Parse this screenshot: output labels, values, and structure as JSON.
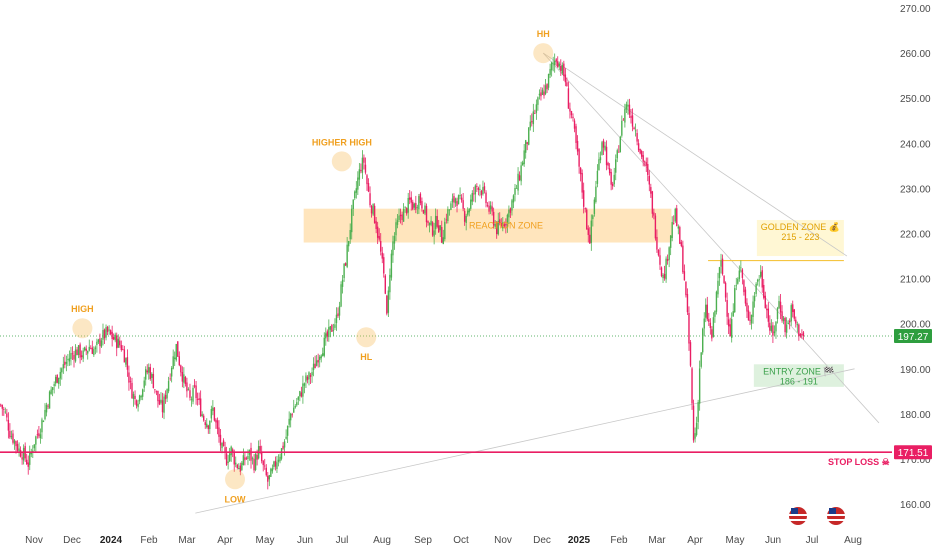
{
  "chart_data": {
    "type": "candlestick",
    "y_axis": {
      "ticks": [
        "270.00",
        "260.00",
        "250.00",
        "240.00",
        "230.00",
        "220.00",
        "210.00",
        "200.00",
        "190.00",
        "180.00",
        "170.00",
        "160.00"
      ],
      "range": [
        157,
        272
      ],
      "position": "right"
    },
    "x_axis": {
      "ticks": [
        {
          "label": "Nov",
          "bold": false
        },
        {
          "label": "Dec",
          "bold": false
        },
        {
          "label": "2024",
          "bold": true
        },
        {
          "label": "Feb",
          "bold": false
        },
        {
          "label": "Mar",
          "bold": false
        },
        {
          "label": "Apr",
          "bold": false
        },
        {
          "label": "May",
          "bold": false
        },
        {
          "label": "Jun",
          "bold": false
        },
        {
          "label": "Jul",
          "bold": false
        },
        {
          "label": "Aug",
          "bold": false
        },
        {
          "label": "Sep",
          "bold": false
        },
        {
          "label": "Oct",
          "bold": false
        },
        {
          "label": "Nov",
          "bold": false
        },
        {
          "label": "Dec",
          "bold": false
        },
        {
          "label": "2025",
          "bold": true
        },
        {
          "label": "Feb",
          "bold": false
        },
        {
          "label": "Mar",
          "bold": false
        },
        {
          "label": "Apr",
          "bold": false
        },
        {
          "label": "May",
          "bold": false
        },
        {
          "label": "Jun",
          "bold": false
        },
        {
          "label": "Jul",
          "bold": false
        },
        {
          "label": "Aug",
          "bold": false
        }
      ]
    },
    "close_path": [
      [
        0,
        182
      ],
      [
        3,
        180
      ],
      [
        6,
        176
      ],
      [
        9,
        174
      ],
      [
        12,
        172
      ],
      [
        15,
        171
      ],
      [
        18,
        169
      ],
      [
        22,
        174
      ],
      [
        26,
        177
      ],
      [
        30,
        182
      ],
      [
        34,
        186
      ],
      [
        38,
        189
      ],
      [
        42,
        191
      ],
      [
        46,
        193
      ],
      [
        50,
        194
      ],
      [
        54,
        193
      ],
      [
        58,
        195
      ],
      [
        62,
        194
      ],
      [
        66,
        197
      ],
      [
        70,
        198
      ],
      [
        73,
        197
      ],
      [
        76,
        196
      ],
      [
        79,
        195
      ],
      [
        82,
        192
      ],
      [
        85,
        186
      ],
      [
        88,
        183
      ],
      [
        91,
        184
      ],
      [
        94,
        188
      ],
      [
        97,
        190
      ],
      [
        100,
        187
      ],
      [
        103,
        183
      ],
      [
        106,
        181
      ],
      [
        109,
        186
      ],
      [
        112,
        191
      ],
      [
        115,
        195
      ],
      [
        118,
        190
      ],
      [
        121,
        186
      ],
      [
        124,
        183
      ],
      [
        127,
        185
      ],
      [
        130,
        182
      ],
      [
        133,
        179
      ],
      [
        136,
        178
      ],
      [
        139,
        181
      ],
      [
        142,
        176
      ],
      [
        145,
        172
      ],
      [
        148,
        170
      ],
      [
        151,
        172
      ],
      [
        154,
        169
      ],
      [
        157,
        168
      ],
      [
        160,
        170
      ],
      [
        163,
        171
      ],
      [
        166,
        169
      ],
      [
        169,
        172
      ],
      [
        172,
        168
      ],
      [
        175,
        165
      ],
      [
        178,
        167
      ],
      [
        181,
        170
      ],
      [
        184,
        172
      ],
      [
        187,
        175
      ],
      [
        190,
        180
      ],
      [
        193,
        182
      ],
      [
        196,
        184
      ],
      [
        199,
        187
      ],
      [
        202,
        188
      ],
      [
        205,
        190
      ],
      [
        208,
        193
      ],
      [
        211,
        195
      ],
      [
        214,
        197
      ],
      [
        217,
        199
      ],
      [
        220,
        201
      ],
      [
        222,
        205
      ],
      [
        224,
        210
      ],
      [
        226,
        214
      ],
      [
        228,
        219
      ],
      [
        230,
        224
      ],
      [
        232,
        228
      ],
      [
        234,
        232
      ],
      [
        236,
        235
      ],
      [
        238,
        236
      ],
      [
        240,
        231
      ],
      [
        242,
        227
      ],
      [
        244,
        225
      ],
      [
        246,
        222
      ],
      [
        248,
        218
      ],
      [
        250,
        213
      ],
      [
        252,
        208
      ],
      [
        253,
        201
      ],
      [
        255,
        212
      ],
      [
        257,
        218
      ],
      [
        259,
        221
      ],
      [
        262,
        224
      ],
      [
        265,
        225
      ],
      [
        268,
        227
      ],
      [
        271,
        226
      ],
      [
        274,
        228
      ],
      [
        277,
        226
      ],
      [
        280,
        222
      ],
      [
        283,
        221
      ],
      [
        286,
        223
      ],
      [
        289,
        219
      ],
      [
        292,
        224
      ],
      [
        295,
        226
      ],
      [
        298,
        228
      ],
      [
        301,
        227
      ],
      [
        304,
        224
      ],
      [
        307,
        226
      ],
      [
        310,
        229
      ],
      [
        313,
        231
      ],
      [
        316,
        229
      ],
      [
        319,
        226
      ],
      [
        322,
        224
      ],
      [
        325,
        221
      ],
      [
        328,
        222
      ],
      [
        331,
        223
      ],
      [
        334,
        226
      ],
      [
        337,
        229
      ],
      [
        340,
        233
      ],
      [
        343,
        238
      ],
      [
        346,
        242
      ],
      [
        349,
        246
      ],
      [
        352,
        249
      ],
      [
        355,
        251
      ],
      [
        358,
        253
      ],
      [
        361,
        257
      ],
      [
        364,
        259
      ],
      [
        367,
        257
      ],
      [
        370,
        254
      ],
      [
        372,
        249
      ],
      [
        374,
        246
      ],
      [
        376,
        242
      ],
      [
        378,
        237
      ],
      [
        380,
        232
      ],
      [
        382,
        227
      ],
      [
        384,
        222
      ],
      [
        386,
        219
      ],
      [
        388,
        224
      ],
      [
        390,
        231
      ],
      [
        392,
        236
      ],
      [
        394,
        241
      ],
      [
        396,
        239
      ],
      [
        398,
        234
      ],
      [
        400,
        230
      ],
      [
        402,
        233
      ],
      [
        404,
        237
      ],
      [
        406,
        242
      ],
      [
        408,
        246
      ],
      [
        410,
        249
      ],
      [
        412,
        247
      ],
      [
        414,
        245
      ],
      [
        416,
        243
      ],
      [
        418,
        240
      ],
      [
        420,
        237
      ],
      [
        422,
        236
      ],
      [
        424,
        232
      ],
      [
        426,
        228
      ],
      [
        428,
        223
      ],
      [
        430,
        218
      ],
      [
        432,
        214
      ],
      [
        434,
        210
      ],
      [
        436,
        213
      ],
      [
        438,
        218
      ],
      [
        440,
        222
      ],
      [
        442,
        224
      ],
      [
        444,
        220
      ],
      [
        446,
        216
      ],
      [
        448,
        210
      ],
      [
        450,
        201
      ],
      [
        452,
        190
      ],
      [
        454,
        174
      ],
      [
        456,
        178
      ],
      [
        458,
        190
      ],
      [
        460,
        198
      ],
      [
        462,
        203
      ],
      [
        464,
        200
      ],
      [
        466,
        197
      ],
      [
        468,
        203
      ],
      [
        470,
        210
      ],
      [
        472,
        213
      ],
      [
        474,
        209
      ],
      [
        476,
        203
      ],
      [
        478,
        198
      ],
      [
        480,
        203
      ],
      [
        482,
        210
      ],
      [
        484,
        213
      ],
      [
        486,
        210
      ],
      [
        488,
        204
      ],
      [
        490,
        200
      ],
      [
        492,
        203
      ],
      [
        494,
        207
      ],
      [
        496,
        210
      ],
      [
        498,
        211
      ],
      [
        500,
        207
      ],
      [
        502,
        203
      ],
      [
        504,
        199
      ],
      [
        506,
        197
      ],
      [
        508,
        201
      ],
      [
        510,
        205
      ],
      [
        512,
        202
      ],
      [
        514,
        199
      ],
      [
        516,
        200
      ],
      [
        518,
        203
      ],
      [
        520,
        201
      ],
      [
        522,
        199
      ],
      [
        524,
        198
      ],
      [
        526,
        197
      ]
    ],
    "last_price": "197.27",
    "horizontal_levels": [
      {
        "name": "stop-loss",
        "value": 171.51,
        "label": "171.51"
      }
    ],
    "zones": [
      {
        "name": "reaction-zone",
        "label": "REACTION ZONE",
        "x0": 199,
        "x1": 440,
        "y0": 218,
        "y1": 225.5
      },
      {
        "name": "golden-zone",
        "label": "GOLDEN ZONE 💰",
        "sublabel": "215 - 223",
        "x0": 496,
        "x1": 553,
        "y0": 215,
        "y1": 223
      },
      {
        "name": "entry-zone",
        "label": "ENTRY ZONE 🏁",
        "sublabel": "186 - 191",
        "x0": 494,
        "x1": 553,
        "y0": 186,
        "y1": 191
      }
    ],
    "annotations": [
      {
        "name": "high",
        "label": "HIGH",
        "x": 54,
        "y": 199,
        "text_pos": "above"
      },
      {
        "name": "low",
        "label": "LOW",
        "x": 154,
        "y": 165.5,
        "text_pos": "below"
      },
      {
        "name": "higher-high",
        "label": "HIGHER HIGH",
        "x": 224,
        "y": 236,
        "text_pos": "above"
      },
      {
        "name": "hl",
        "label": "HL",
        "x": 240,
        "y": 197,
        "text_pos": "below"
      },
      {
        "name": "hh",
        "label": "HH",
        "x": 356,
        "y": 260,
        "text_pos": "above"
      }
    ],
    "stop_loss_label": "STOP LOSS ☠",
    "colors": {
      "up": "#4caf50",
      "down": "#e91e63",
      "stop": "#e91e63",
      "last": "#2e9e3f",
      "reaction": "#ffe0b2",
      "golden": "#fff6cc",
      "entry": "#d8efd8",
      "ann": "#f0a020"
    }
  }
}
